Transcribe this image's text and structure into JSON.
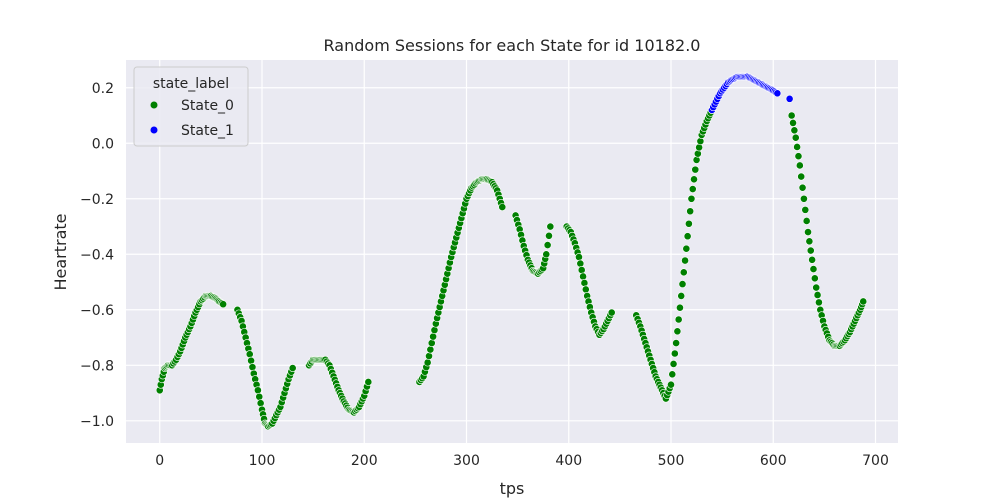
{
  "chart_data": {
    "type": "scatter",
    "title": "Random Sessions for each State for id 10182.0",
    "xlabel": "tps",
    "ylabel": "Heartrate",
    "xlim": [
      -33,
      722
    ],
    "ylim": [
      -1.08,
      0.3
    ],
    "xticks": [
      0,
      100,
      200,
      300,
      400,
      500,
      600,
      700
    ],
    "yticks": [
      0.2,
      0.0,
      -0.2,
      -0.4,
      -0.6,
      -0.8,
      -1.0
    ],
    "xtick_labels": [
      "0",
      "100",
      "200",
      "300",
      "400",
      "500",
      "600",
      "700"
    ],
    "ytick_labels": [
      "0.2",
      "0.0",
      "−0.2",
      "−0.4",
      "−0.6",
      "−0.8",
      "−1.0"
    ],
    "grid": true,
    "legend": {
      "title": "state_label",
      "placement": "top-left",
      "entries": [
        {
          "label": "State_0",
          "color": "#008000"
        },
        {
          "label": "State_1",
          "color": "#0000ff"
        }
      ]
    },
    "series": [
      {
        "name": "State_0",
        "color": "#008000",
        "segments": [
          {
            "x": [
              0,
              2,
              5,
              8,
              12,
              16,
              20,
              25,
              30,
              35,
              40,
              45,
              50,
              55,
              58,
              62
            ],
            "y": [
              -0.89,
              -0.85,
              -0.81,
              -0.8,
              -0.8,
              -0.78,
              -0.75,
              -0.7,
              -0.66,
              -0.61,
              -0.57,
              -0.55,
              -0.55,
              -0.56,
              -0.57,
              -0.58
            ]
          },
          {
            "x": [
              76,
              80,
              84,
              88,
              92,
              96,
              100,
              103,
              106,
              110,
              114,
              118,
              122,
              126,
              130
            ],
            "y": [
              -0.6,
              -0.64,
              -0.7,
              -0.76,
              -0.83,
              -0.89,
              -0.96,
              -1.01,
              -1.02,
              -1.01,
              -0.98,
              -0.95,
              -0.9,
              -0.85,
              -0.81
            ]
          },
          {
            "x": [
              146,
              150,
              156,
              162,
              166
            ],
            "y": [
              -0.8,
              -0.78,
              -0.78,
              -0.78,
              -0.8
            ]
          },
          {
            "x": [
              166,
              170,
              175,
              180,
              185,
              190,
              195,
              200,
              204
            ],
            "y": [
              -0.8,
              -0.84,
              -0.89,
              -0.93,
              -0.96,
              -0.97,
              -0.95,
              -0.91,
              -0.86
            ]
          },
          {
            "x": [
              254,
              258,
              262,
              266,
              270,
              275,
              280,
              285,
              290,
              295,
              300,
              305,
              310,
              315,
              320,
              325,
              330,
              335
            ],
            "y": [
              -0.86,
              -0.84,
              -0.79,
              -0.72,
              -0.65,
              -0.57,
              -0.49,
              -0.41,
              -0.34,
              -0.27,
              -0.2,
              -0.16,
              -0.14,
              -0.13,
              -0.13,
              -0.14,
              -0.17,
              -0.23
            ]
          },
          {
            "x": [
              348,
              352,
              356,
              360,
              365,
              370,
              375,
              378,
              382
            ],
            "y": [
              -0.26,
              -0.31,
              -0.37,
              -0.42,
              -0.46,
              -0.47,
              -0.45,
              -0.4,
              -0.3
            ]
          },
          {
            "x": [
              398,
              402,
              406,
              410,
              414,
              418,
              422,
              426,
              430,
              434,
              438,
              442
            ],
            "y": [
              -0.3,
              -0.32,
              -0.36,
              -0.41,
              -0.48,
              -0.55,
              -0.61,
              -0.66,
              -0.69,
              -0.67,
              -0.64,
              -0.61
            ]
          },
          {
            "x": [
              466,
              470,
              475,
              480,
              485,
              490,
              495,
              500,
              505,
              510,
              515,
              520,
              525,
              530,
              535,
              540
            ],
            "y": [
              -0.62,
              -0.66,
              -0.72,
              -0.78,
              -0.84,
              -0.88,
              -0.92,
              -0.87,
              -0.72,
              -0.55,
              -0.38,
              -0.2,
              -0.06,
              0.03,
              0.08,
              0.12
            ]
          },
          {
            "x": [
              618,
              622,
              626,
              630,
              634,
              638,
              642,
              646,
              650,
              655,
              660,
              665,
              670,
              675,
              680,
              685,
              688
            ],
            "y": [
              0.1,
              0.02,
              -0.08,
              -0.2,
              -0.32,
              -0.42,
              -0.52,
              -0.6,
              -0.66,
              -0.71,
              -0.73,
              -0.73,
              -0.71,
              -0.68,
              -0.64,
              -0.6,
              -0.57
            ]
          }
        ]
      },
      {
        "name": "State_1",
        "color": "#0000ff",
        "segments": [
          {
            "x": [
              540,
              544,
              548,
              552,
              556,
              560,
              565,
              570,
              575,
              580,
              585,
              590,
              595,
              600,
              604
            ],
            "y": [
              0.12,
              0.15,
              0.18,
              0.2,
              0.22,
              0.23,
              0.24,
              0.24,
              0.24,
              0.23,
              0.22,
              0.21,
              0.2,
              0.19,
              0.18
            ]
          },
          {
            "x": [
              616
            ],
            "y": [
              0.16
            ]
          }
        ]
      }
    ]
  }
}
